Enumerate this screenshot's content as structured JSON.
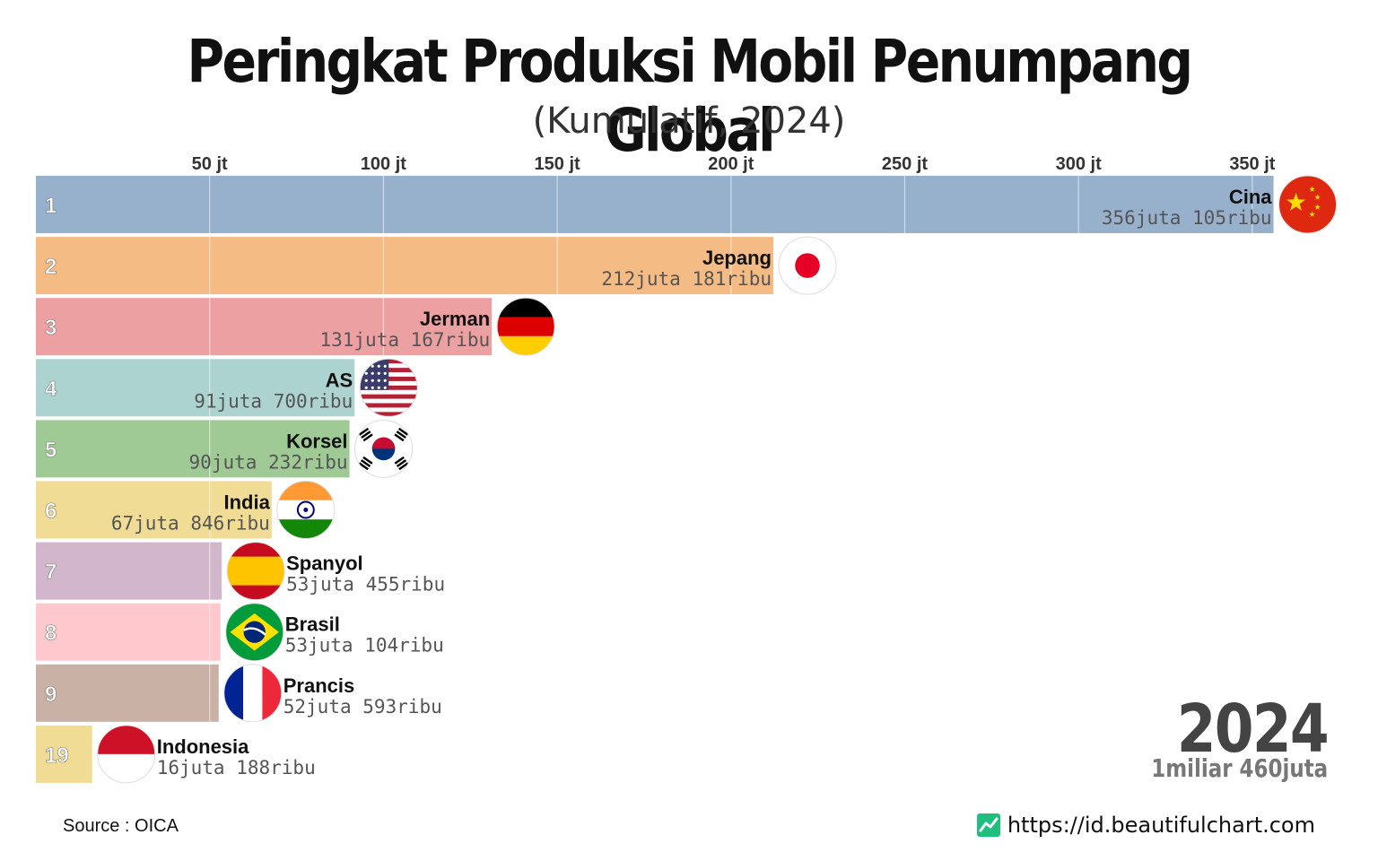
{
  "title": "Peringkat Produksi Mobil Penumpang Global",
  "subtitle": "(Kumulatif, 2024)",
  "year": "2024",
  "total": "1miliar 460juta",
  "source": "Source : OICA",
  "website": "https://id.beautifulchart.com",
  "chart_data": {
    "type": "bar",
    "orientation": "horizontal",
    "xlim": [
      0,
      360
    ],
    "tick_values": [
      50,
      100,
      150,
      200,
      250,
      300,
      350
    ],
    "tick_labels": [
      "50 jt",
      "100 jt",
      "150 jt",
      "200 jt",
      "250 jt",
      "300 jt",
      "350 jt"
    ],
    "unit": "juta",
    "bars": [
      {
        "rank": "1",
        "name": "Cina",
        "value": 356.105,
        "label": "356juta 105ribu",
        "color": "#97b0cc",
        "flag": "china-flag-icon"
      },
      {
        "rank": "2",
        "name": "Jepang",
        "value": 212.181,
        "label": "212juta 181ribu",
        "color": "#f5bb85",
        "flag": "japan-flag-icon"
      },
      {
        "rank": "3",
        "name": "Jerman",
        "value": 131.167,
        "label": "131juta 167ribu",
        "color": "#eda0a1",
        "flag": "germany-flag-icon"
      },
      {
        "rank": "4",
        "name": "AS",
        "value": 91.7,
        "label": "91juta 700ribu",
        "color": "#acd3cf",
        "flag": "usa-flag-icon"
      },
      {
        "rank": "5",
        "name": "Korsel",
        "value": 90.232,
        "label": "90juta 232ribu",
        "color": "#a0ca95",
        "flag": "south-korea-flag-icon"
      },
      {
        "rank": "6",
        "name": "India",
        "value": 67.846,
        "label": "67juta 846ribu",
        "color": "#f1dc96",
        "flag": "india-flag-icon"
      },
      {
        "rank": "7",
        "name": "Spanyol",
        "value": 53.455,
        "label": "53juta 455ribu",
        "color": "#d2b6cc",
        "flag": "spain-flag-icon"
      },
      {
        "rank": "8",
        "name": "Brasil",
        "value": 53.104,
        "label": "53juta 104ribu",
        "color": "#fec8cd",
        "flag": "brazil-flag-icon"
      },
      {
        "rank": "9",
        "name": "Prancis",
        "value": 52.593,
        "label": "52juta 593ribu",
        "color": "#c9b1a6",
        "flag": "france-flag-icon"
      },
      {
        "rank": "19",
        "name": "Indonesia",
        "value": 16.188,
        "label": "16juta 188ribu",
        "color": "#f1dc96",
        "flag": "indonesia-flag-icon"
      }
    ]
  }
}
